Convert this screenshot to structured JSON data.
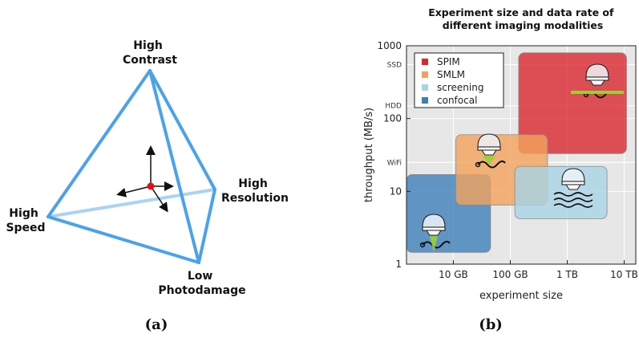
{
  "panel_a": {
    "caption": "(a)",
    "labels": {
      "top": [
        "High",
        "Contrast"
      ],
      "right": [
        "High",
        "Resolution"
      ],
      "left": [
        "High",
        "Speed"
      ],
      "bottom": [
        "Low",
        "Photodamage"
      ]
    },
    "colors": {
      "edge": "#4aa3e8",
      "edge_light": "#a9d3f2",
      "center": "#e0121a"
    }
  },
  "panel_b": {
    "caption": "(b)",
    "chart_data": {
      "type": "area",
      "title": [
        "Experiment size and data rate of",
        "different imaging modalities"
      ],
      "xlabel": "experiment size",
      "ylabel": "throughput (MB/s)",
      "x_scale": "log",
      "y_scale": "log",
      "x_ticks": [
        {
          "value": 10,
          "label": "10 GB"
        },
        {
          "value": 100,
          "label": "100 GB"
        },
        {
          "value": 1000,
          "label": "1 TB"
        },
        {
          "value": 10000,
          "label": "10 TB"
        }
      ],
      "y_ticks": [
        {
          "value": 1,
          "label": "1"
        },
        {
          "value": 10,
          "label": "10"
        },
        {
          "value": 100,
          "label": "100"
        },
        {
          "value": 1000,
          "label": "1000"
        }
      ],
      "xlim": [
        1.5,
        16000
      ],
      "ylim": [
        1,
        1000
      ],
      "grid": true,
      "legend_position": "top-left",
      "reference_lines": [
        {
          "label": "SSD",
          "value": 550
        },
        {
          "label": "HDD",
          "value": 150
        },
        {
          "label": "WiFi",
          "value": 25
        }
      ],
      "series": [
        {
          "name": "SPIM",
          "color": "#d9282e",
          "x": [
            140,
            11000
          ],
          "y": [
            33,
            800
          ]
        },
        {
          "name": "SMLM",
          "color": "#f2a25c",
          "x": [
            11,
            450
          ],
          "y": [
            6.5,
            60
          ]
        },
        {
          "name": "screening",
          "color": "#a8d5e6",
          "x": [
            120,
            5000
          ],
          "y": [
            4.2,
            22
          ]
        },
        {
          "name": "confocal",
          "color": "#3d7fba",
          "x": [
            1.5,
            45
          ],
          "y": [
            1.45,
            17
          ]
        }
      ]
    }
  }
}
